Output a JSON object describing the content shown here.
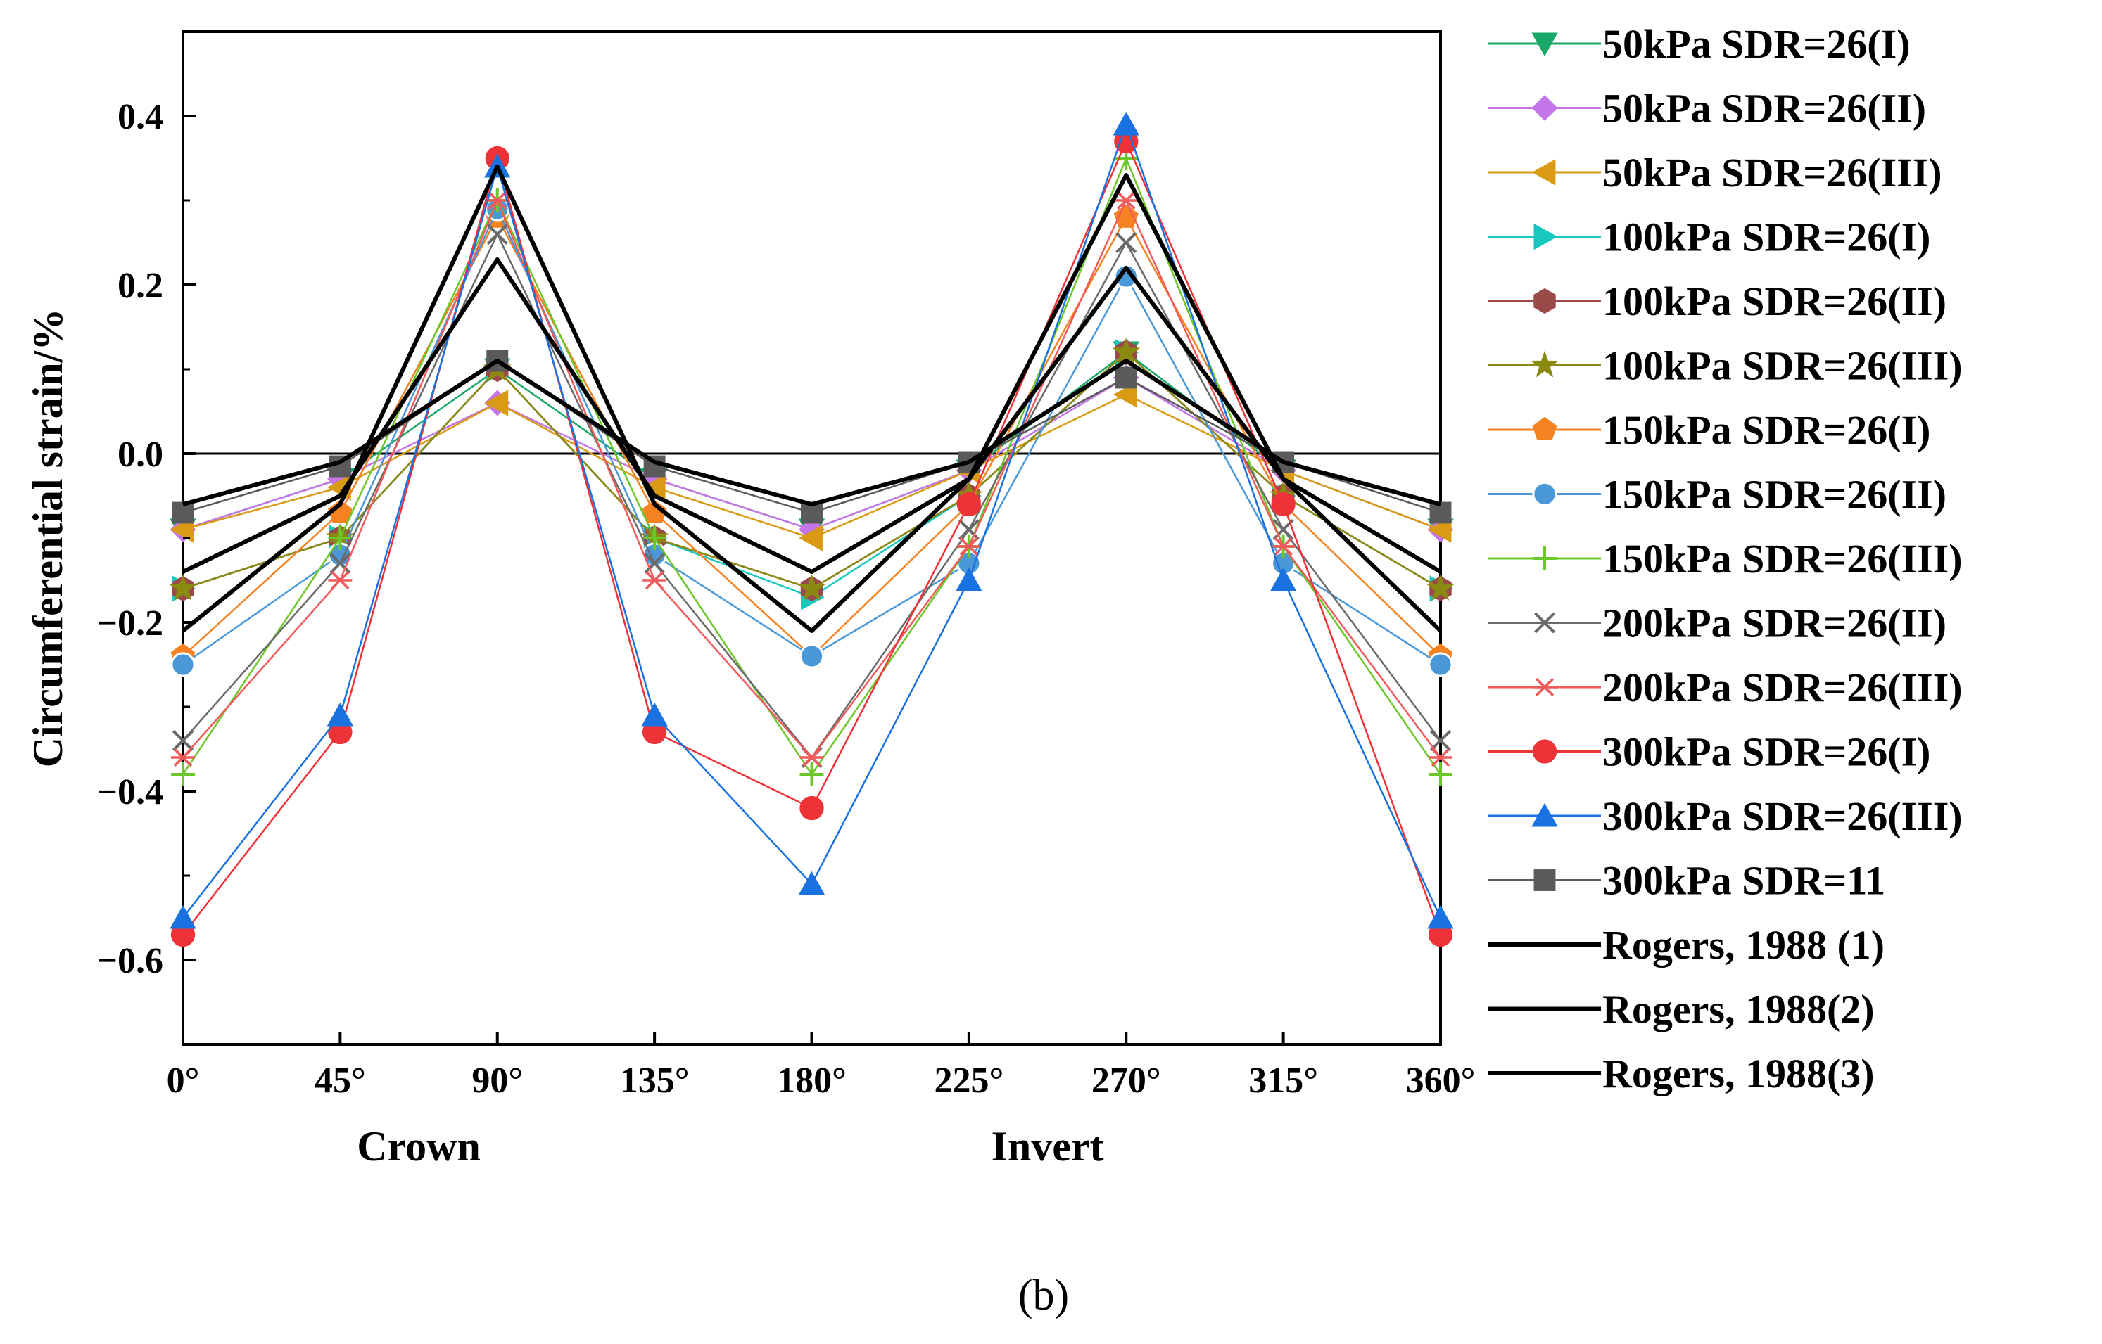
{
  "chart_data": {
    "type": "line",
    "panel_label": "(b)",
    "ylabel": "Circumferential strain/%",
    "xlabel_positions": [
      {
        "text": "Crown",
        "at": 67.5
      },
      {
        "text": "Invert",
        "at": 247.5
      }
    ],
    "x": [
      0,
      45,
      90,
      135,
      180,
      225,
      270,
      315,
      360
    ],
    "xtick_labels": [
      "0°",
      "45°",
      "90°",
      "135°",
      "180°",
      "225°",
      "270°",
      "315°",
      "360°"
    ],
    "xlim": [
      0,
      360
    ],
    "ylim": [
      -0.7,
      0.5
    ],
    "yticks": [
      0.4,
      0.2,
      0.0,
      -0.2,
      -0.4,
      -0.6
    ],
    "ytick_labels": [
      "0.4",
      "0.2",
      "0.0",
      "−0.2",
      "−0.4",
      "−0.6"
    ],
    "zero_line": 0.0,
    "legend_position": "right, outside plot",
    "series": [
      {
        "name": "50kPa SDR=26(I)",
        "color": "#1aa868",
        "marker": "triangle-down",
        "values": [
          -0.09,
          -0.03,
          0.1,
          -0.03,
          -0.09,
          -0.02,
          0.12,
          -0.02,
          -0.09
        ]
      },
      {
        "name": "50kPa SDR=26(II)",
        "color": "#c476e8",
        "marker": "diamond",
        "values": [
          -0.09,
          -0.03,
          0.06,
          -0.03,
          -0.09,
          -0.02,
          0.09,
          -0.02,
          -0.09
        ]
      },
      {
        "name": "50kPa SDR=26(III)",
        "color": "#d99a14",
        "marker": "triangle-left",
        "values": [
          -0.09,
          -0.04,
          0.06,
          -0.04,
          -0.1,
          -0.02,
          0.07,
          -0.02,
          -0.09
        ]
      },
      {
        "name": "100kPa SDR=26(I)",
        "color": "#16c8c0",
        "marker": "triangle-right",
        "values": [
          -0.16,
          -0.1,
          0.1,
          -0.1,
          -0.17,
          -0.05,
          0.12,
          -0.05,
          -0.16
        ]
      },
      {
        "name": "100kPa SDR=26(II)",
        "color": "#9a4a48",
        "marker": "hexagon",
        "values": [
          -0.16,
          -0.1,
          0.1,
          -0.1,
          -0.16,
          -0.05,
          0.12,
          -0.05,
          -0.16
        ]
      },
      {
        "name": "100kPa SDR=26(III)",
        "color": "#8a8a10",
        "marker": "star",
        "values": [
          -0.16,
          -0.1,
          0.1,
          -0.1,
          -0.16,
          -0.05,
          0.12,
          -0.05,
          -0.16
        ]
      },
      {
        "name": "150kPa SDR=26(I)",
        "color": "#f58220",
        "marker": "pentagon",
        "values": [
          -0.24,
          -0.07,
          0.28,
          -0.07,
          -0.24,
          -0.06,
          0.28,
          -0.06,
          -0.24
        ]
      },
      {
        "name": "150kPa SDR=26(II)",
        "color": "#4a98d8",
        "marker": "sphere",
        "values": [
          -0.25,
          -0.12,
          0.29,
          -0.12,
          -0.24,
          -0.13,
          0.21,
          -0.13,
          -0.25
        ]
      },
      {
        "name": "150kPa SDR=26(III)",
        "color": "#6cc82a",
        "marker": "plus",
        "values": [
          -0.38,
          -0.1,
          0.3,
          -0.1,
          -0.38,
          -0.11,
          0.35,
          -0.11,
          -0.38
        ]
      },
      {
        "name": "200kPa SDR=26(II)",
        "color": "#6a6a6a",
        "marker": "cross",
        "values": [
          -0.34,
          -0.13,
          0.26,
          -0.13,
          -0.36,
          -0.09,
          0.25,
          -0.09,
          -0.34
        ]
      },
      {
        "name": "200kPa SDR=26(III)",
        "color": "#f05a5a",
        "marker": "asterisk",
        "values": [
          -0.36,
          -0.15,
          0.3,
          -0.15,
          -0.36,
          -0.11,
          0.3,
          -0.11,
          -0.36
        ]
      },
      {
        "name": "300kPa SDR=26(I)",
        "color": "#ee3338",
        "marker": "circle",
        "values": [
          -0.57,
          -0.33,
          0.35,
          -0.33,
          -0.42,
          -0.06,
          0.37,
          -0.06,
          -0.57
        ]
      },
      {
        "name": "300kPa SDR=26(III)",
        "color": "#1a72e0",
        "marker": "triangle-up",
        "values": [
          -0.55,
          -0.31,
          0.34,
          -0.31,
          -0.51,
          -0.15,
          0.39,
          -0.15,
          -0.55
        ]
      },
      {
        "name": "300kPa SDR=11",
        "color": "#5a5a5a",
        "marker": "square",
        "values": [
          -0.07,
          -0.015,
          0.11,
          -0.015,
          -0.07,
          -0.01,
          0.09,
          -0.01,
          -0.07
        ]
      },
      {
        "name": "Rogers, 1988 (1)",
        "color": "#000000",
        "marker": "none",
        "values": [
          -0.06,
          -0.01,
          0.11,
          -0.01,
          -0.06,
          -0.01,
          0.11,
          -0.01,
          -0.06
        ]
      },
      {
        "name": "Rogers, 1988(2)",
        "color": "#000000",
        "marker": "none",
        "values": [
          -0.14,
          -0.05,
          0.23,
          -0.05,
          -0.14,
          -0.03,
          0.22,
          -0.03,
          -0.14
        ]
      },
      {
        "name": "Rogers, 1988(3)",
        "color": "#000000",
        "marker": "none",
        "values": [
          -0.21,
          -0.06,
          0.34,
          -0.06,
          -0.21,
          -0.03,
          0.33,
          -0.03,
          -0.21
        ]
      }
    ]
  }
}
